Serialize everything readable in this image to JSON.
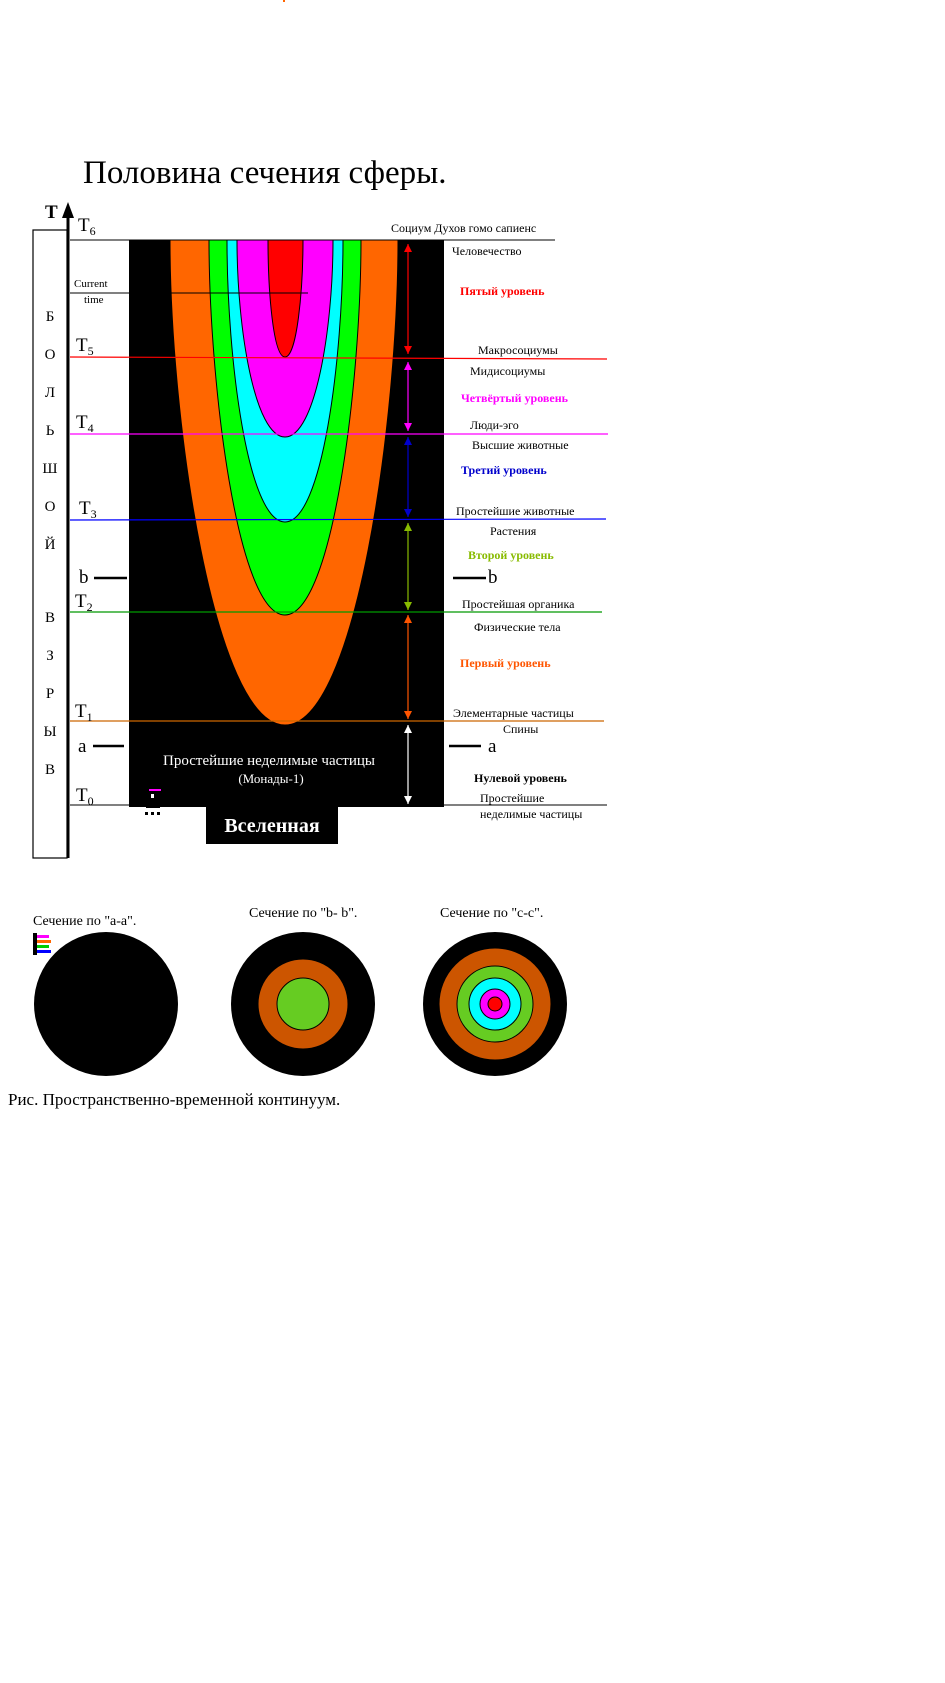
{
  "title": "Половина  сечения   сферы.",
  "axis": {
    "label": "Т",
    "ticks": [
      "6",
      "5",
      "4",
      "3",
      "2",
      "1",
      "0"
    ],
    "tick_prefix": "T"
  },
  "vertical_word": [
    "Б",
    "О",
    "Л",
    "Ь",
    "Ш",
    "О",
    "Й",
    "",
    "В",
    "З",
    "Р",
    "Ы",
    "В"
  ],
  "current_time": {
    "line1": "Current",
    "line2": "time",
    "suffix": "e"
  },
  "section_marks": {
    "a": "a",
    "b": "b"
  },
  "inner_text": {
    "line1": "Простейшие неделимые частицы",
    "line2": "(Монады-1)"
  },
  "base_label": "Вселенная",
  "right_labels": {
    "top": "Социум  Духов гомо сапиенс",
    "humanity": "Человечество",
    "macro": "Макросоциумы",
    "midi": "Мидисоциумы",
    "ego": "Люди-эго",
    "higher_animals": "Высшие животные",
    "simple_animals": "Простейшие животные",
    "plants": "Растения",
    "simple_organic": "Простейшая органика",
    "physical": "Физические тела",
    "elementary": "Элементарные частицы",
    "spins": "Спины",
    "simplest_1": "Простейшие",
    "simplest_2": "неделимые частицы"
  },
  "levels": {
    "fifth": "Пятый уровень",
    "fourth": "Четвёртый уровень",
    "third": "Третий  уровень",
    "second": "Второй  уровень",
    "first": "Первый уровень",
    "zero": "Нулевой  уровень"
  },
  "colors": {
    "black": "#000000",
    "orange": "#ff6600",
    "green": "#00ff00",
    "cyan": "#00ffff",
    "magenta": "#ff00ff",
    "red": "#ff0000",
    "level_fifth": "#ff0000",
    "level_fourth": "#ff00ff",
    "level_third": "#0000cc",
    "level_second": "#88bb00",
    "level_first": "#ff5500",
    "line_t5": "#ff0000",
    "line_t4": "#ff00ff",
    "line_t3": "#0000ff",
    "line_t2": "#009900",
    "line_t1": "#cc6600",
    "section_brown": "#cc5500",
    "section_green": "#66cc22",
    "section_cyan": "#00ffff",
    "section_magenta": "#ff00ff",
    "section_red": "#ff0000"
  },
  "sections": {
    "aa": "Сечение по \"а-а\".",
    "bb": "Сечение по \"b- b\".",
    "cc": "Сечение по \"с-с\"."
  },
  "caption": "Рис. Пространственно-временной континуум."
}
